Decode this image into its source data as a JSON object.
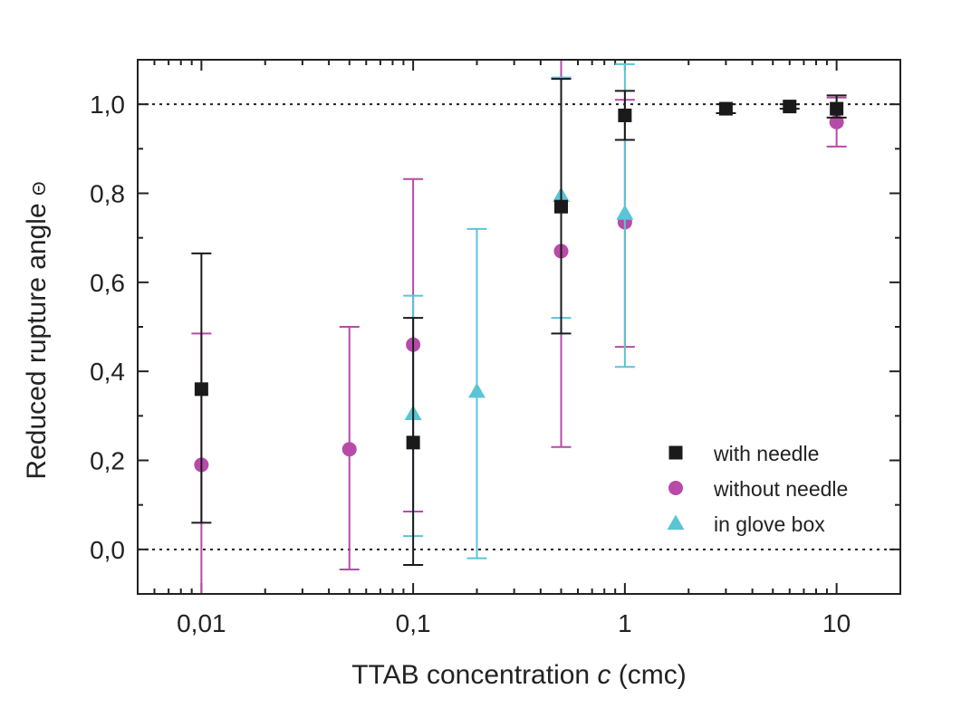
{
  "chart_data": {
    "type": "scatter",
    "x_scale": "log",
    "xlim": [
      0.005,
      20
    ],
    "ylim": [
      -0.1,
      1.1
    ],
    "x_ticks": [
      {
        "value": 0.01,
        "label": "0,01"
      },
      {
        "value": 0.1,
        "label": "0,1"
      },
      {
        "value": 1,
        "label": "1"
      },
      {
        "value": 10,
        "label": "10"
      }
    ],
    "y_ticks": [
      {
        "value": 0.0,
        "label": "0,0"
      },
      {
        "value": 0.2,
        "label": "0,2"
      },
      {
        "value": 0.4,
        "label": "0,4"
      },
      {
        "value": 0.6,
        "label": "0,6"
      },
      {
        "value": 0.8,
        "label": "0,8"
      },
      {
        "value": 1.0,
        "label": "1,0"
      }
    ],
    "reference_lines_y": [
      0.0,
      1.0
    ],
    "xlabel": {
      "prefix": "TTAB concentration ",
      "symbol": "c",
      "suffix": " (cmc)"
    },
    "ylabel": {
      "text": "Reduced rupture angle ",
      "symbol": "Θ"
    },
    "legend_position": "bottom-right",
    "series": [
      {
        "name": "with needle",
        "marker": "square",
        "color": "#1a1a1a",
        "points": [
          {
            "x": 0.01,
            "y": 0.36,
            "ylow": 0.06,
            "yhigh": 0.665
          },
          {
            "x": 0.1,
            "y": 0.24,
            "ylow": -0.035,
            "yhigh": 0.52
          },
          {
            "x": 0.5,
            "y": 0.77,
            "ylow": 0.485,
            "yhigh": 1.057
          },
          {
            "x": 1,
            "y": 0.975,
            "ylow": 0.92,
            "yhigh": 1.03
          },
          {
            "x": 3,
            "y": 0.99,
            "ylow": 0.98,
            "yhigh": 1.0
          },
          {
            "x": 6,
            "y": 0.995,
            "ylow": 0.99,
            "yhigh": 1.0
          },
          {
            "x": 10,
            "y": 0.99,
            "ylow": 0.97,
            "yhigh": 1.02
          }
        ]
      },
      {
        "name": "without needle",
        "marker": "circle",
        "color": "#b84aa8",
        "points": [
          {
            "x": 0.01,
            "y": 0.19,
            "ylow": -0.11,
            "yhigh": 0.485
          },
          {
            "x": 0.05,
            "y": 0.225,
            "ylow": -0.045,
            "yhigh": 0.5
          },
          {
            "x": 0.1,
            "y": 0.46,
            "ylow": 0.085,
            "yhigh": 0.832
          },
          {
            "x": 0.5,
            "y": 0.67,
            "ylow": 0.23,
            "yhigh": 1.11
          },
          {
            "x": 1,
            "y": 0.735,
            "ylow": 0.455,
            "yhigh": 1.01
          },
          {
            "x": 10,
            "y": 0.96,
            "ylow": 0.905,
            "yhigh": 1.015
          }
        ]
      },
      {
        "name": "in glove box",
        "marker": "triangle",
        "color": "#5bc4d6",
        "points": [
          {
            "x": 0.1,
            "y": 0.305,
            "ylow": 0.03,
            "yhigh": 0.57
          },
          {
            "x": 0.2,
            "y": 0.355,
            "ylow": -0.02,
            "yhigh": 0.72
          },
          {
            "x": 0.5,
            "y": 0.795,
            "ylow": 0.52,
            "yhigh": 1.06
          },
          {
            "x": 1,
            "y": 0.755,
            "ylow": 0.41,
            "yhigh": 1.09
          }
        ]
      }
    ]
  }
}
